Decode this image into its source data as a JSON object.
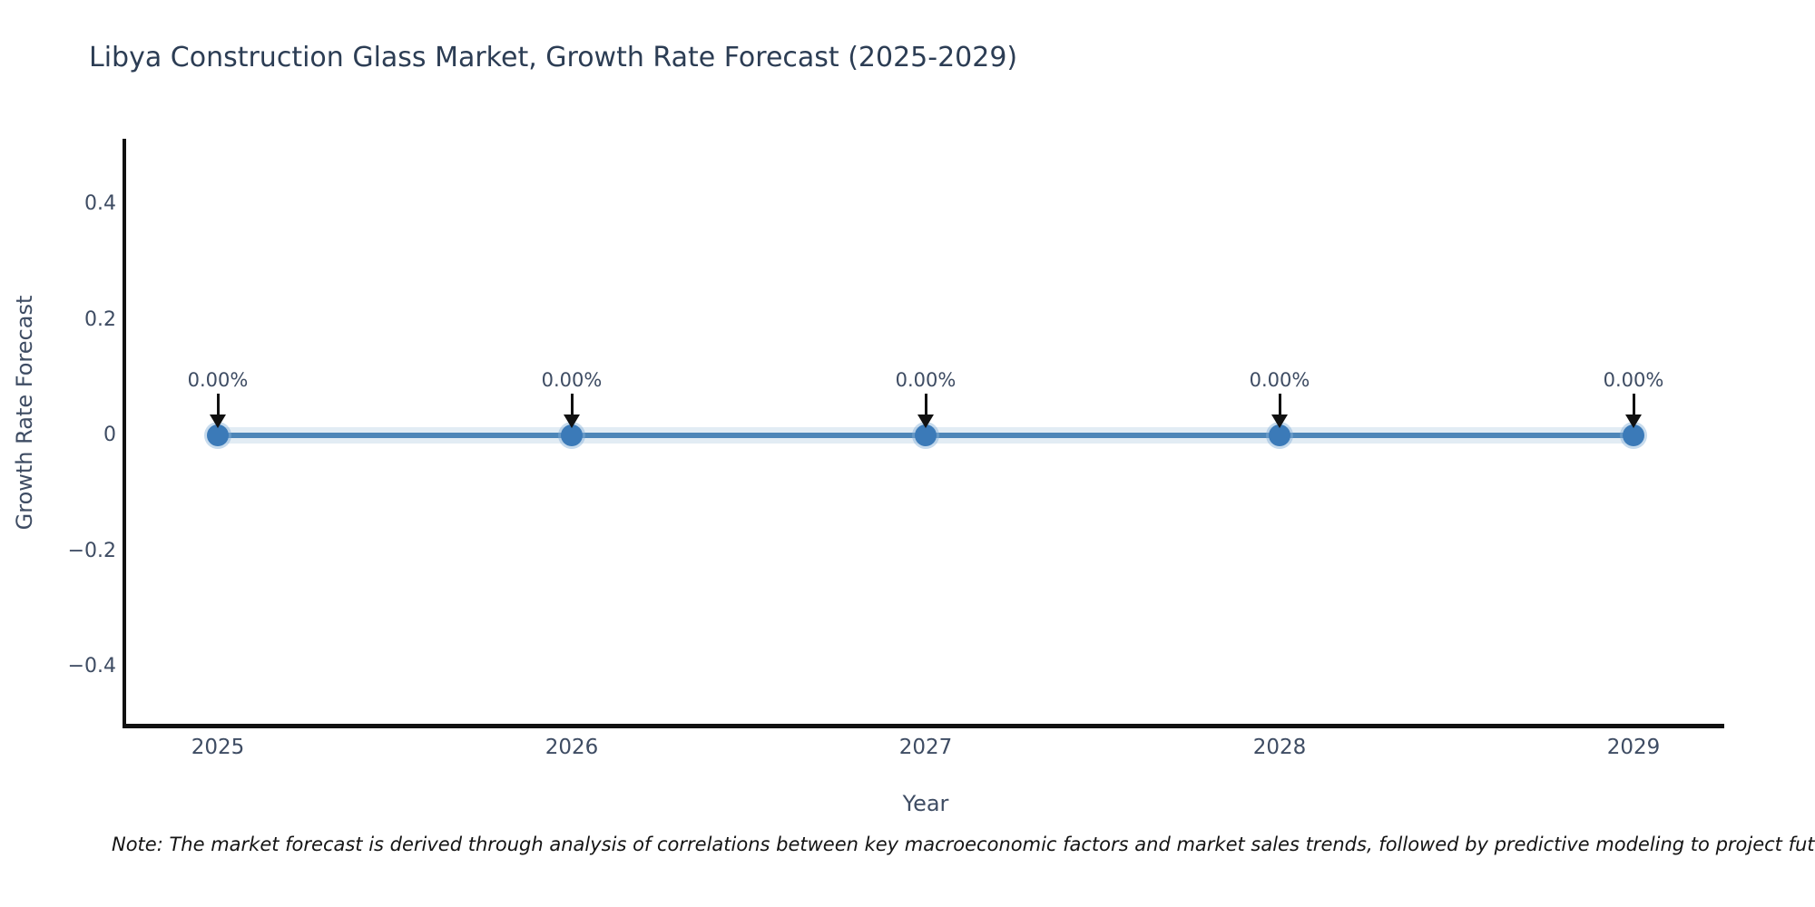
{
  "title": "Libya Construction Glass Market, Growth Rate Forecast (2025-2029)",
  "axes": {
    "x_label": "Year",
    "y_label": "Growth Rate Forecast"
  },
  "note": "Note: The market forecast is derived through analysis of correlations between key macroeconomic factors and market sales trends, followed by predictive modeling to project future sales.",
  "colors": {
    "line": "#4d86b8",
    "marker": "#3b7ab8",
    "band": "rgba(77,134,184,0.16)",
    "axis": "#111111",
    "title_text": "#2c3d54",
    "tick_text": "#3e4c63",
    "note_text": "#141414"
  },
  "chart_data": {
    "type": "line",
    "title": "Libya Construction Glass Market, Growth Rate Forecast (2025-2029)",
    "xlabel": "Year",
    "ylabel": "Growth Rate Forecast",
    "x": [
      2025,
      2026,
      2027,
      2028,
      2029
    ],
    "series": [
      {
        "name": "Growth Rate Forecast",
        "values": [
          0,
          0,
          0,
          0,
          0
        ]
      }
    ],
    "point_labels": [
      "0.00%",
      "0.00%",
      "0.00%",
      "0.00%",
      "0.00%"
    ],
    "yticks": [
      {
        "value": 0.4,
        "label": "0.4"
      },
      {
        "value": 0.2,
        "label": "0.2"
      },
      {
        "value": 0,
        "label": "0"
      },
      {
        "value": -0.2,
        "label": "−0.2"
      },
      {
        "value": -0.4,
        "label": "−0.4"
      }
    ],
    "ylim": [
      -0.51,
      0.51
    ],
    "grid": false,
    "legend": false,
    "annotations_arrow": "down"
  }
}
